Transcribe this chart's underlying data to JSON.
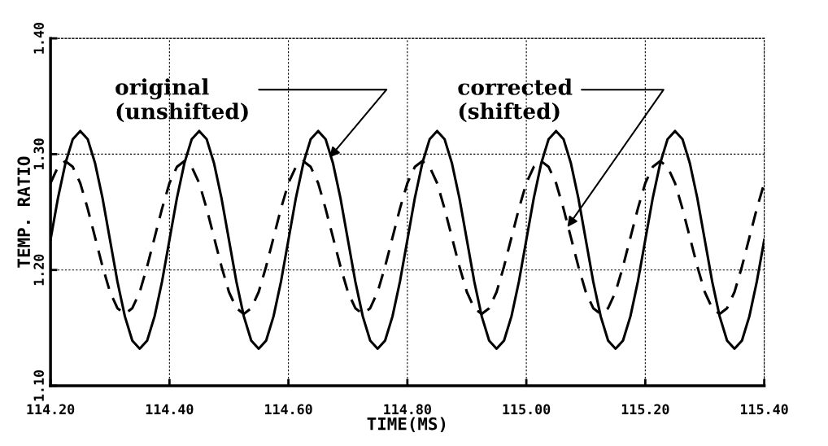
{
  "chart_data": {
    "type": "line",
    "xlabel": "TIME(MS)",
    "ylabel": "TEMP. RATIO",
    "x": [
      114.2,
      114.2125,
      114.225,
      114.2375,
      114.25,
      114.2625,
      114.275,
      114.2875,
      114.3,
      114.3125,
      114.325,
      114.3375,
      114.35,
      114.3625,
      114.375,
      114.3875,
      114.4,
      114.4125,
      114.425,
      114.4375,
      114.45,
      114.4625,
      114.475,
      114.4875,
      114.5,
      114.5125,
      114.525,
      114.5375,
      114.55,
      114.5625,
      114.575,
      114.5875,
      114.6,
      114.6125,
      114.625,
      114.6375,
      114.65,
      114.6625,
      114.675,
      114.6875,
      114.7,
      114.7125,
      114.725,
      114.7375,
      114.75,
      114.7625,
      114.775,
      114.7875,
      114.8,
      114.8125,
      114.825,
      114.8375,
      114.85,
      114.8625,
      114.875,
      114.8875,
      114.9,
      114.9125,
      114.925,
      114.9375,
      114.95,
      114.9625,
      114.975,
      114.9875,
      115.0,
      115.0125,
      115.025,
      115.0375,
      115.05,
      115.0625,
      115.075,
      115.0875,
      115.1,
      115.1125,
      115.125,
      115.1375,
      115.15,
      115.1625,
      115.175,
      115.1875,
      115.2,
      115.2125,
      115.225,
      115.2375,
      115.25,
      115.2625,
      115.275,
      115.2875,
      115.3,
      115.3125,
      115.325,
      115.3375,
      115.35,
      115.3625,
      115.375,
      115.3875,
      115.4
    ],
    "series": [
      {
        "color": "#000000",
        "line_style": "solid",
        "values": [
          1.226,
          1.262,
          1.292,
          1.313,
          1.32,
          1.313,
          1.292,
          1.262,
          1.226,
          1.19,
          1.16,
          1.139,
          1.132,
          1.139,
          1.16,
          1.19,
          1.226,
          1.262,
          1.292,
          1.313,
          1.32,
          1.313,
          1.292,
          1.262,
          1.226,
          1.19,
          1.16,
          1.139,
          1.132,
          1.139,
          1.16,
          1.19,
          1.226,
          1.262,
          1.292,
          1.313,
          1.32,
          1.313,
          1.292,
          1.262,
          1.226,
          1.19,
          1.16,
          1.139,
          1.132,
          1.139,
          1.16,
          1.19,
          1.226,
          1.262,
          1.292,
          1.313,
          1.32,
          1.313,
          1.292,
          1.262,
          1.226,
          1.19,
          1.16,
          1.139,
          1.132,
          1.139,
          1.16,
          1.19,
          1.226,
          1.262,
          1.292,
          1.313,
          1.32,
          1.313,
          1.292,
          1.262,
          1.226,
          1.19,
          1.16,
          1.139,
          1.132,
          1.139,
          1.16,
          1.19,
          1.226,
          1.262,
          1.292,
          1.313,
          1.32,
          1.313,
          1.292,
          1.262,
          1.226,
          1.19,
          1.16,
          1.139,
          1.132,
          1.139,
          1.16,
          1.19,
          1.226
        ]
      },
      {
        "color": "#000000",
        "line_style": "dashed",
        "values": [
          1.275,
          1.289,
          1.294,
          1.289,
          1.275,
          1.253,
          1.228,
          1.203,
          1.181,
          1.167,
          1.162,
          1.167,
          1.181,
          1.203,
          1.228,
          1.253,
          1.275,
          1.289,
          1.294,
          1.289,
          1.275,
          1.253,
          1.228,
          1.203,
          1.181,
          1.167,
          1.162,
          1.167,
          1.181,
          1.203,
          1.228,
          1.253,
          1.275,
          1.289,
          1.294,
          1.289,
          1.275,
          1.253,
          1.228,
          1.203,
          1.181,
          1.167,
          1.162,
          1.167,
          1.181,
          1.203,
          1.228,
          1.253,
          1.275,
          1.289,
          1.294,
          1.289,
          1.275,
          1.253,
          1.228,
          1.203,
          1.181,
          1.167,
          1.162,
          1.167,
          1.181,
          1.203,
          1.228,
          1.253,
          1.275,
          1.289,
          1.294,
          1.289,
          1.275,
          1.253,
          1.228,
          1.203,
          1.181,
          1.167,
          1.162,
          1.167,
          1.181,
          1.203,
          1.228,
          1.253,
          1.275,
          1.289,
          1.294,
          1.289,
          1.275,
          1.253,
          1.228,
          1.203,
          1.181,
          1.167,
          1.162,
          1.167,
          1.181,
          1.203,
          1.228,
          1.253,
          1.275
        ]
      }
    ],
    "xlim": [
      114.2,
      115.4
    ],
    "xticks": [
      {
        "value": 114.2,
        "label": "114.20"
      },
      {
        "value": 114.4,
        "label": "114.40"
      },
      {
        "value": 114.6,
        "label": "114.60"
      },
      {
        "value": 114.8,
        "label": "114.80"
      },
      {
        "value": 115.0,
        "label": "115.00"
      },
      {
        "value": 115.2,
        "label": "115.20"
      },
      {
        "value": 115.4,
        "label": "115.40"
      }
    ],
    "ylim": [
      1.1,
      1.4
    ],
    "yticks": [
      {
        "value": 1.1,
        "label": "1.10"
      },
      {
        "value": 1.2,
        "label": "1.20"
      },
      {
        "value": 1.3,
        "label": "1.30"
      },
      {
        "value": 1.4,
        "label": "1.40"
      }
    ],
    "grid": true,
    "annotations": [
      {
        "text": "original\n(unshifted)",
        "x": 114.669,
        "y": 1.297
      },
      {
        "text": "corrected\n(shifted)",
        "x": 115.069,
        "y": 1.237
      }
    ]
  }
}
